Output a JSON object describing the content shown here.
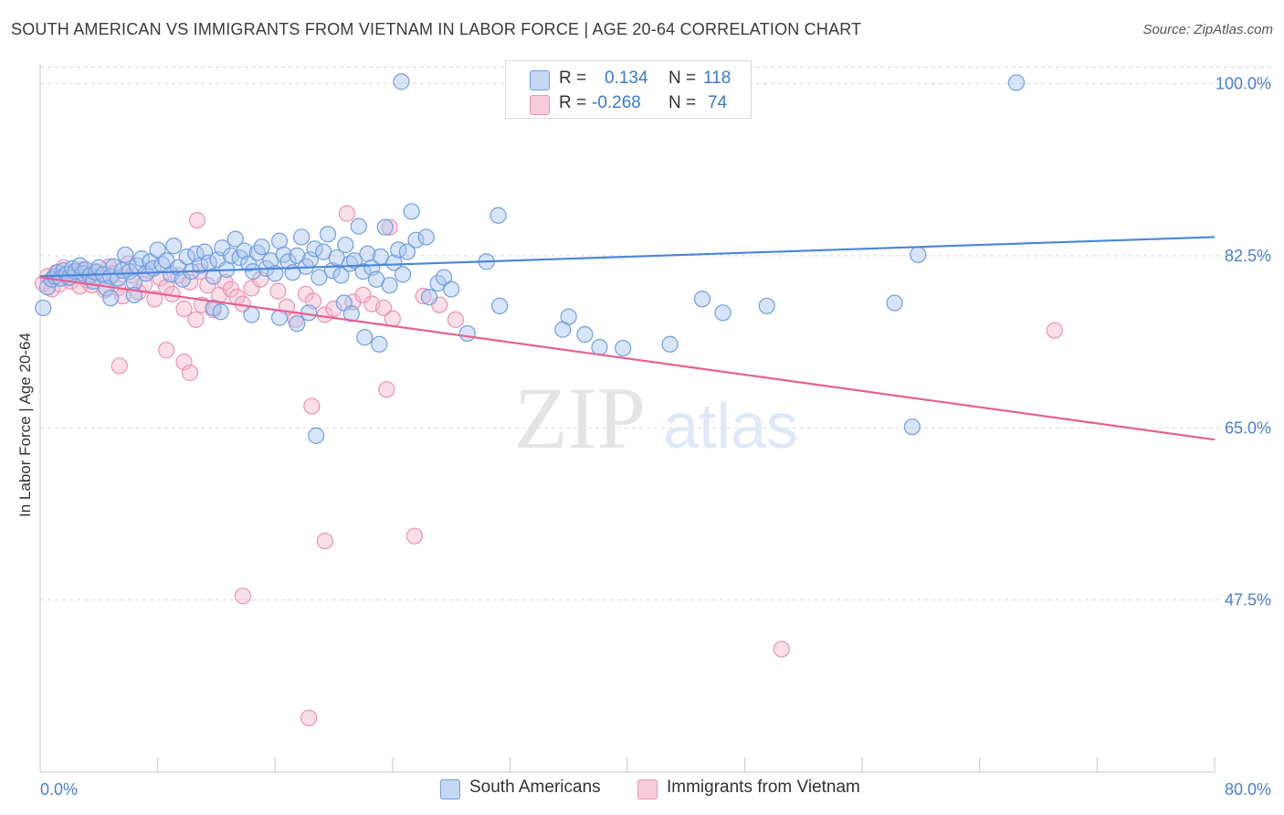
{
  "header": {
    "title": "SOUTH AMERICAN VS IMMIGRANTS FROM VIETNAM IN LABOR FORCE | AGE 20-64 CORRELATION CHART",
    "source": "Source: ZipAtlas.com"
  },
  "watermark": {
    "zip": "ZIP",
    "atlas": "atlas"
  },
  "legend": {
    "rows": [
      {
        "r_label": "R =",
        "r_value": "0.134",
        "n_label": "N =",
        "n_value": "118"
      },
      {
        "r_label": "R =",
        "r_value": "-0.268",
        "n_label": "N =",
        "n_value": "74"
      }
    ]
  },
  "bottom_legend": {
    "series_a": "South Americans",
    "series_b": "Immigrants from Vietnam"
  },
  "colors": {
    "blue": "#4a86d8",
    "blue_fill": "#a9c6f0",
    "pink": "#e8608e",
    "pink_fill": "#f5b8cc",
    "axis_label": "#4a7fd1"
  },
  "chart_data": {
    "type": "scatter",
    "title": "SOUTH AMERICAN VS IMMIGRANTS FROM VIETNAM IN LABOR FORCE | AGE 20-64 CORRELATION CHART",
    "xlabel": "",
    "ylabel": "In Labor Force | Age 20-64",
    "xlim": [
      0,
      80
    ],
    "ylim": [
      30,
      102
    ],
    "x_tick_labels": [
      "0.0%",
      "80.0%"
    ],
    "y_ticks": [
      47.5,
      65.0,
      82.5,
      100.0
    ],
    "y_tick_labels": [
      "47.5%",
      "65.0%",
      "82.5%",
      "100.0%"
    ],
    "grid": true,
    "legend_position": "top-center",
    "series": [
      {
        "name": "South Americans",
        "color": "#4a86d8",
        "trend": {
          "x": [
            0,
            80
          ],
          "y": [
            80.4,
            84.4
          ]
        },
        "points": [
          [
            0.2,
            77.2
          ],
          [
            0.5,
            79.3
          ],
          [
            0.8,
            80.1
          ],
          [
            1.0,
            80.4
          ],
          [
            1.2,
            80.8
          ],
          [
            1.4,
            80.2
          ],
          [
            1.6,
            81.0
          ],
          [
            1.8,
            80.6
          ],
          [
            2.0,
            80.3
          ],
          [
            2.2,
            81.2
          ],
          [
            2.4,
            80.9
          ],
          [
            2.7,
            81.5
          ],
          [
            2.9,
            80.7
          ],
          [
            3.1,
            81.1
          ],
          [
            3.4,
            80.5
          ],
          [
            3.6,
            79.9
          ],
          [
            3.8,
            80.8
          ],
          [
            4.0,
            81.3
          ],
          [
            4.3,
            80.6
          ],
          [
            4.5,
            79.2
          ],
          [
            4.8,
            80.4
          ],
          [
            5.0,
            81.4
          ],
          [
            5.3,
            80.2
          ],
          [
            5.6,
            81.0
          ],
          [
            5.8,
            82.6
          ],
          [
            6.1,
            80.9
          ],
          [
            6.4,
            79.8
          ],
          [
            6.6,
            81.5
          ],
          [
            6.9,
            82.2
          ],
          [
            7.2,
            80.7
          ],
          [
            7.5,
            81.9
          ],
          [
            7.7,
            81.2
          ],
          [
            8.0,
            83.1
          ],
          [
            8.3,
            81.6
          ],
          [
            8.6,
            82.0
          ],
          [
            8.9,
            80.6
          ],
          [
            9.1,
            83.5
          ],
          [
            9.4,
            81.3
          ],
          [
            9.7,
            80.1
          ],
          [
            10.0,
            82.4
          ],
          [
            10.3,
            80.9
          ],
          [
            10.6,
            82.7
          ],
          [
            10.9,
            81.5
          ],
          [
            11.2,
            82.9
          ],
          [
            11.5,
            81.8
          ],
          [
            11.8,
            80.4
          ],
          [
            12.1,
            82.1
          ],
          [
            12.4,
            83.3
          ],
          [
            12.7,
            81.1
          ],
          [
            13.0,
            82.5
          ],
          [
            13.3,
            84.2
          ],
          [
            13.6,
            82.3
          ],
          [
            13.9,
            83.0
          ],
          [
            14.2,
            81.7
          ],
          [
            14.5,
            80.9
          ],
          [
            14.8,
            82.8
          ],
          [
            15.1,
            83.4
          ],
          [
            15.4,
            81.2
          ],
          [
            15.7,
            82.0
          ],
          [
            16.0,
            80.7
          ],
          [
            16.3,
            84.0
          ],
          [
            16.6,
            82.6
          ],
          [
            16.9,
            81.9
          ],
          [
            17.2,
            80.8
          ],
          [
            17.5,
            82.5
          ],
          [
            17.8,
            84.4
          ],
          [
            18.1,
            81.4
          ],
          [
            18.4,
            82.1
          ],
          [
            18.7,
            83.2
          ],
          [
            19.0,
            80.3
          ],
          [
            19.3,
            82.9
          ],
          [
            19.6,
            84.7
          ],
          [
            19.9,
            81.0
          ],
          [
            20.2,
            82.3
          ],
          [
            20.5,
            80.5
          ],
          [
            20.8,
            83.6
          ],
          [
            21.1,
            81.7
          ],
          [
            21.4,
            82.0
          ],
          [
            21.7,
            85.5
          ],
          [
            22.0,
            80.9
          ],
          [
            22.3,
            82.7
          ],
          [
            22.6,
            81.3
          ],
          [
            22.9,
            80.1
          ],
          [
            23.2,
            82.4
          ],
          [
            23.5,
            85.4
          ],
          [
            23.8,
            79.5
          ],
          [
            24.1,
            81.8
          ],
          [
            24.4,
            83.1
          ],
          [
            24.7,
            80.6
          ],
          [
            25.0,
            82.9
          ],
          [
            25.3,
            87.0
          ],
          [
            25.6,
            84.1
          ],
          [
            4.8,
            78.2
          ],
          [
            6.4,
            78.5
          ],
          [
            11.8,
            77.2
          ],
          [
            12.3,
            76.8
          ],
          [
            14.4,
            76.5
          ],
          [
            16.3,
            76.2
          ],
          [
            17.5,
            75.6
          ],
          [
            18.3,
            76.7
          ],
          [
            20.7,
            77.7
          ],
          [
            21.2,
            76.6
          ],
          [
            22.1,
            74.2
          ],
          [
            23.1,
            73.5
          ],
          [
            26.5,
            78.3
          ],
          [
            27.1,
            79.7
          ],
          [
            27.5,
            80.3
          ],
          [
            28.0,
            79.1
          ],
          [
            29.1,
            74.6
          ],
          [
            30.4,
            81.9
          ],
          [
            31.3,
            77.4
          ],
          [
            35.6,
            75.0
          ],
          [
            36.0,
            76.3
          ],
          [
            37.1,
            74.5
          ],
          [
            38.1,
            73.2
          ],
          [
            39.7,
            73.1
          ],
          [
            42.9,
            73.5
          ],
          [
            45.1,
            78.1
          ],
          [
            46.5,
            76.7
          ],
          [
            58.2,
            77.7
          ],
          [
            49.5,
            77.4
          ],
          [
            59.8,
            82.6
          ],
          [
            18.8,
            64.2
          ],
          [
            59.4,
            65.1
          ],
          [
            26.3,
            84.4
          ],
          [
            31.2,
            86.6
          ],
          [
            66.5,
            100.1
          ],
          [
            24.6,
            100.2
          ]
        ]
      },
      {
        "name": "Immigrants from Vietnam",
        "color": "#e8608e",
        "trend": {
          "x": [
            0,
            80
          ],
          "y": [
            80.3,
            63.8
          ]
        },
        "points": [
          [
            0.2,
            79.7
          ],
          [
            0.5,
            80.4
          ],
          [
            0.8,
            79.1
          ],
          [
            1.1,
            80.8
          ],
          [
            1.3,
            79.6
          ],
          [
            1.6,
            81.3
          ],
          [
            1.9,
            80.2
          ],
          [
            2.1,
            79.9
          ],
          [
            2.4,
            80.6
          ],
          [
            2.7,
            79.4
          ],
          [
            2.9,
            81.1
          ],
          [
            3.2,
            80.0
          ],
          [
            3.5,
            79.5
          ],
          [
            3.8,
            80.9
          ],
          [
            4.1,
            80.3
          ],
          [
            4.4,
            79.0
          ],
          [
            4.7,
            81.4
          ],
          [
            5.0,
            80.7
          ],
          [
            5.3,
            79.2
          ],
          [
            5.6,
            78.4
          ],
          [
            6.0,
            81.7
          ],
          [
            6.3,
            80.5
          ],
          [
            6.7,
            78.8
          ],
          [
            7.1,
            79.6
          ],
          [
            7.4,
            81.0
          ],
          [
            7.8,
            78.1
          ],
          [
            8.2,
            80.2
          ],
          [
            8.6,
            79.3
          ],
          [
            9.0,
            78.6
          ],
          [
            9.4,
            80.5
          ],
          [
            9.8,
            77.1
          ],
          [
            10.2,
            79.8
          ],
          [
            10.6,
            76.0
          ],
          [
            11.0,
            77.5
          ],
          [
            11.4,
            79.5
          ],
          [
            11.8,
            77.0
          ],
          [
            12.2,
            78.5
          ],
          [
            12.6,
            79.8
          ],
          [
            13.0,
            79.1
          ],
          [
            13.4,
            78.3
          ],
          [
            13.8,
            77.6
          ],
          [
            14.4,
            79.2
          ],
          [
            15.0,
            80.1
          ],
          [
            16.2,
            78.9
          ],
          [
            16.8,
            77.3
          ],
          [
            17.4,
            76.0
          ],
          [
            18.1,
            78.6
          ],
          [
            18.6,
            77.9
          ],
          [
            19.4,
            76.5
          ],
          [
            20.0,
            77.1
          ],
          [
            21.3,
            77.8
          ],
          [
            22.0,
            78.5
          ],
          [
            22.6,
            77.6
          ],
          [
            23.4,
            77.2
          ],
          [
            24.0,
            76.1
          ],
          [
            26.1,
            78.4
          ],
          [
            27.2,
            77.5
          ],
          [
            28.3,
            76.0
          ],
          [
            5.4,
            71.3
          ],
          [
            8.6,
            72.9
          ],
          [
            9.8,
            71.7
          ],
          [
            10.2,
            70.6
          ],
          [
            23.6,
            68.9
          ],
          [
            10.7,
            86.1
          ],
          [
            10.9,
            80.9
          ],
          [
            18.5,
            67.2
          ],
          [
            20.9,
            86.8
          ],
          [
            23.8,
            85.4
          ],
          [
            69.1,
            74.9
          ],
          [
            19.4,
            53.5
          ],
          [
            25.5,
            54.0
          ],
          [
            13.8,
            47.9
          ],
          [
            18.3,
            35.5
          ],
          [
            50.5,
            42.5
          ]
        ]
      }
    ]
  }
}
